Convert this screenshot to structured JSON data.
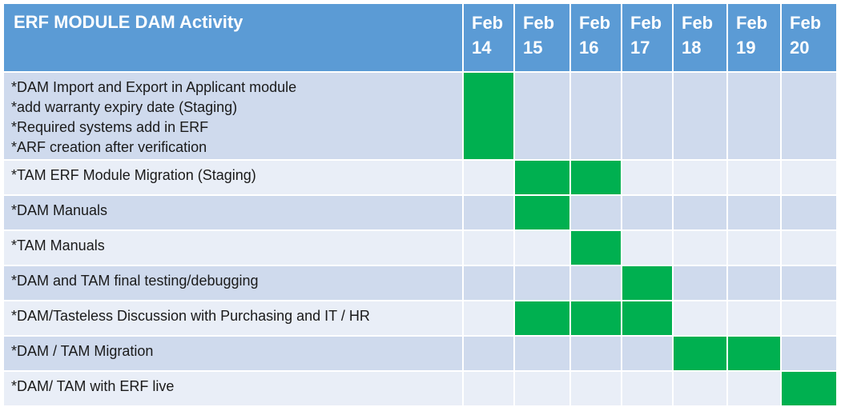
{
  "chart_data": {
    "type": "table",
    "title": "ERF MODULE DAM Activity",
    "columns": [
      {
        "month": "Feb",
        "day": "14"
      },
      {
        "month": "Feb",
        "day": "15"
      },
      {
        "month": "Feb",
        "day": "16"
      },
      {
        "month": "Feb",
        "day": "17"
      },
      {
        "month": "Feb",
        "day": "18"
      },
      {
        "month": "Feb",
        "day": "19"
      },
      {
        "month": "Feb",
        "day": "20"
      }
    ],
    "tasks": [
      {
        "lines": [
          "*DAM Import and Export in Applicant module",
          "*add warranty expiry date (Staging)",
          "*Required systems add in ERF",
          "*ARF creation after verification"
        ],
        "active_days": [
          "14"
        ]
      },
      {
        "lines": [
          "*TAM ERF Module Migration (Staging)"
        ],
        "active_days": [
          "15",
          "16"
        ]
      },
      {
        "lines": [
          "*DAM Manuals"
        ],
        "active_days": [
          "15"
        ]
      },
      {
        "lines": [
          "*TAM Manuals"
        ],
        "active_days": [
          "16"
        ]
      },
      {
        "lines": [
          "*DAM and TAM final testing/debugging"
        ],
        "active_days": [
          "17"
        ]
      },
      {
        "lines": [
          "*DAM/Tasteless Discussion with Purchasing and IT / HR"
        ],
        "active_days": [
          "15",
          "16",
          "17"
        ]
      },
      {
        "lines": [
          "*DAM / TAM Migration"
        ],
        "active_days": [
          "18",
          "19"
        ]
      },
      {
        "lines": [
          "*DAM/ TAM with ERF live"
        ],
        "active_days": [
          "20"
        ]
      }
    ]
  },
  "colors": {
    "header": "#5b9bd5",
    "row_odd": "#cfdaed",
    "row_even": "#e9eef7",
    "bar": "#00b050"
  }
}
